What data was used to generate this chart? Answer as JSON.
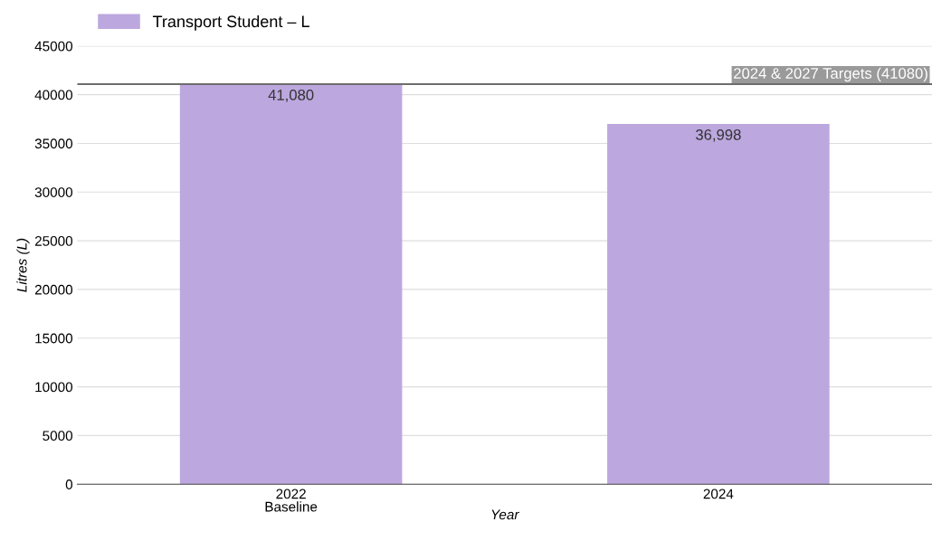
{
  "chart_data": {
    "type": "bar",
    "xlabel": "Year",
    "ylabel": "Litres (L)",
    "categories": [
      "2022\nBaseline",
      "2024"
    ],
    "series": [
      {
        "name": "Transport Student – L",
        "color": "#bca7de",
        "values": [
          41080,
          36998
        ],
        "value_labels": [
          "41,080",
          "36,998"
        ]
      }
    ],
    "ylim": [
      0,
      45000
    ],
    "yticks": [
      0,
      5000,
      10000,
      15000,
      20000,
      25000,
      30000,
      35000,
      40000,
      45000
    ],
    "grid": "y",
    "legend": "top left",
    "ref_lines": [
      {
        "axis": "y",
        "value": 41080,
        "label": "2024 & 2027 Targets (41080)",
        "color": "#6d6d6d",
        "line_style": "solid"
      }
    ]
  }
}
